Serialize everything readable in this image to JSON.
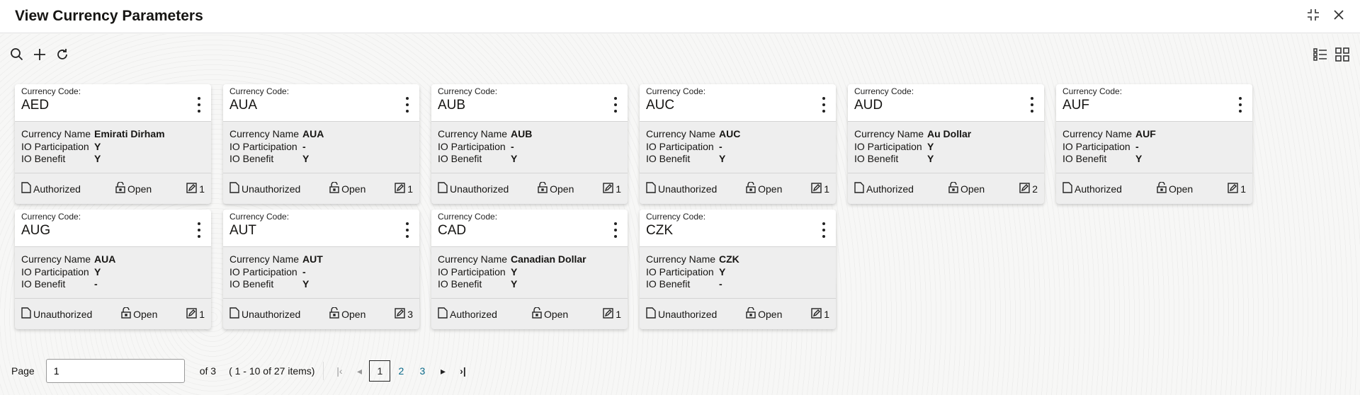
{
  "header": {
    "title": "View Currency Parameters"
  },
  "labels": {
    "currency_code": "Currency Code:",
    "currency_name": "Currency Name",
    "io_participation": "IO Participation",
    "io_benefit": "IO Benefit"
  },
  "cards": [
    {
      "code": "AED",
      "name": "Emirati Dirham",
      "io_participation": "Y",
      "io_benefit": "Y",
      "auth": "Authorized",
      "lock": "Open",
      "mod": "1"
    },
    {
      "code": "AUA",
      "name": "AUA",
      "io_participation": "-",
      "io_benefit": "Y",
      "auth": "Unauthorized",
      "lock": "Open",
      "mod": "1"
    },
    {
      "code": "AUB",
      "name": "AUB",
      "io_participation": "-",
      "io_benefit": "Y",
      "auth": "Unauthorized",
      "lock": "Open",
      "mod": "1"
    },
    {
      "code": "AUC",
      "name": "AUC",
      "io_participation": "-",
      "io_benefit": "Y",
      "auth": "Unauthorized",
      "lock": "Open",
      "mod": "1"
    },
    {
      "code": "AUD",
      "name": "Au Dollar",
      "io_participation": "Y",
      "io_benefit": "Y",
      "auth": "Authorized",
      "lock": "Open",
      "mod": "2"
    },
    {
      "code": "AUF",
      "name": "AUF",
      "io_participation": "-",
      "io_benefit": "Y",
      "auth": "Authorized",
      "lock": "Open",
      "mod": "1"
    },
    {
      "code": "AUG",
      "name": "AUA",
      "io_participation": "Y",
      "io_benefit": "-",
      "auth": "Unauthorized",
      "lock": "Open",
      "mod": "1"
    },
    {
      "code": "AUT",
      "name": "AUT",
      "io_participation": "-",
      "io_benefit": "Y",
      "auth": "Unauthorized",
      "lock": "Open",
      "mod": "3"
    },
    {
      "code": "CAD",
      "name": "Canadian Dollar",
      "io_participation": "Y",
      "io_benefit": "Y",
      "auth": "Authorized",
      "lock": "Open",
      "mod": "1"
    },
    {
      "code": "CZK",
      "name": "CZK",
      "io_participation": "Y",
      "io_benefit": "-",
      "auth": "Unauthorized",
      "lock": "Open",
      "mod": "1"
    }
  ],
  "pagination": {
    "page_label": "Page",
    "current_page": "1",
    "of_pages": "of 3",
    "range": "( 1 - 10 of 27 items)",
    "pages": [
      "1",
      "2",
      "3"
    ]
  },
  "colors": {
    "link": "#0b6a8a",
    "card_body": "#eeeeee"
  }
}
